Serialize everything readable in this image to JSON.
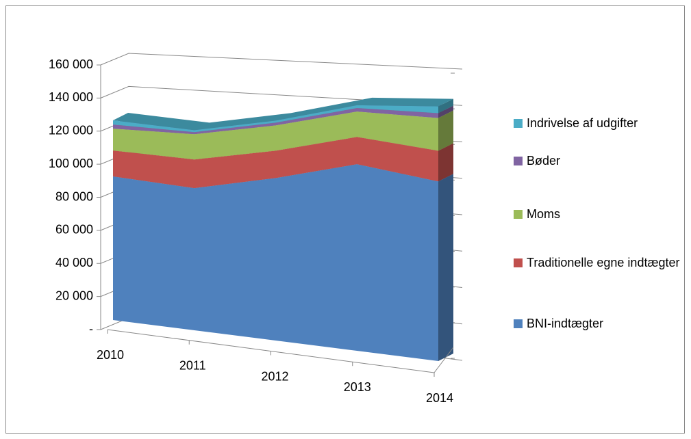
{
  "chart_data": {
    "type": "area3d",
    "categories": [
      "2010",
      "2011",
      "2012",
      "2013",
      "2014"
    ],
    "series": [
      {
        "name": "BNI-indtægter",
        "color": "#4f81bd",
        "values": [
          86800,
          84300,
          94600,
          106600,
          100800
        ]
      },
      {
        "name": "Traditionelle egne indtægter",
        "color": "#c0504d",
        "values": [
          15700,
          17000,
          15900,
          15600,
          17200
        ]
      },
      {
        "name": "Moms",
        "color": "#9bbb59",
        "values": [
          13200,
          15000,
          14700,
          14500,
          18400
        ]
      },
      {
        "name": "Bøder",
        "color": "#8064a2",
        "values": [
          2500,
          1200,
          1600,
          2000,
          2700
        ]
      },
      {
        "name": "Indrivelse af udgifter",
        "color": "#4bacc6",
        "values": [
          2500,
          1200,
          1200,
          1600,
          3800
        ]
      }
    ],
    "stacked": true,
    "ylim": [
      0,
      160000
    ],
    "yticks": [
      {
        "value": 0,
        "label": "-"
      },
      {
        "value": 20000,
        "label": "20 000"
      },
      {
        "value": 40000,
        "label": "40 000"
      },
      {
        "value": 60000,
        "label": "60 000"
      },
      {
        "value": 80000,
        "label": "80 000"
      },
      {
        "value": 100000,
        "label": "100 000"
      },
      {
        "value": 120000,
        "label": "120 000"
      },
      {
        "value": 140000,
        "label": "140 000"
      },
      {
        "value": 160000,
        "label": "160 000"
      }
    ],
    "grid": true,
    "legend": "right"
  }
}
